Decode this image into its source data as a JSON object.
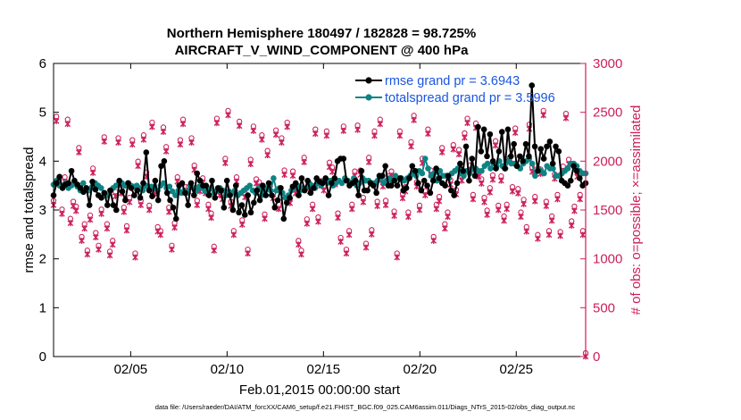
{
  "chart_data": {
    "type": "line",
    "title": "Northern Hemisphere 180497 / 182828 = 98.725%",
    "subtitle": "AIRCRAFT_V_WIND_COMPONENT @ 400 hPa",
    "xlabel": "Feb.01,2015 00:00:00 start",
    "ylabel_left": "rmse and totalspread",
    "ylabel_right": "# of obs: o=possible; ×=assimilated",
    "footnote": "data file: /Users/raeder/DAI/ATM_forcXX/CAM6_setup/f.e21.FHIST_BGC.f09_025.CAM6assim.011/Diags_NTrS_2015-02/obs_diag_output.nc",
    "xlim": [
      1,
      28.6
    ],
    "ylim_left": [
      0,
      6
    ],
    "ylim_right": [
      0,
      3000
    ],
    "x_ticks": [
      5,
      10,
      15,
      20,
      25
    ],
    "x_tick_labels": [
      "02/05",
      "02/10",
      "02/15",
      "02/20",
      "02/25"
    ],
    "y_left_ticks": [
      "0",
      "1",
      "2",
      "3",
      "4",
      "5",
      "6"
    ],
    "y_right_ticks": [
      "0",
      "500",
      "1000",
      "1500",
      "2000",
      "2500",
      "3000"
    ],
    "colors": {
      "rmse": "#000000",
      "spread": "#0f8383",
      "obs": "#cc1f5b",
      "legend_text": "#1a55e0",
      "axis": "#000000"
    },
    "legend": [
      {
        "name": "rmse grand pr = 3.6943",
        "color": "#000000"
      },
      {
        "name": "totalspread grand pr = 3.5996",
        "color": "#0f8383"
      }
    ],
    "series": [
      {
        "name": "rmse",
        "axis": "left",
        "values": [
          3.3,
          3.55,
          3.68,
          3.45,
          3.52,
          3.55,
          3.8,
          3.6,
          3.52,
          3.45,
          3.37,
          3.45,
          3.1,
          3.58,
          3.42,
          3.3,
          3.25,
          3.35,
          3.1,
          3.4,
          3.1,
          3.0,
          3.6,
          3.38,
          3.2,
          3.55,
          3.45,
          3.3,
          3.4,
          3.25,
          3.55,
          4.18,
          3.4,
          3.28,
          3.6,
          3.2,
          3.9,
          4.0,
          3.35,
          3.2,
          3.05,
          2.82,
          3.5,
          3.55,
          3.35,
          3.1,
          3.55,
          3.3,
          3.75,
          3.6,
          3.5,
          3.5,
          3.3,
          3.6,
          3.25,
          3.45,
          3.4,
          3.05,
          3.6,
          3.3,
          3.0,
          3.5,
          2.95,
          3.1,
          2.9,
          3.3,
          2.95,
          3.15,
          3.4,
          3.2,
          3.5,
          3.3,
          3.55,
          3.3,
          3.05,
          3.2,
          3.45,
          2.82,
          3.15,
          3.25,
          3.48,
          3.55,
          3.3,
          3.65,
          3.4,
          3.6,
          3.35,
          3.45,
          3.65,
          3.58,
          3.55,
          3.65,
          3.3,
          3.55,
          3.65,
          4.0,
          4.05,
          4.05,
          3.6,
          3.5,
          3.55,
          3.6,
          3.3,
          3.8,
          3.4,
          3.4,
          3.55,
          3.5,
          3.35,
          3.7,
          3.7,
          3.9,
          3.5,
          3.5,
          3.6,
          3.5,
          3.65,
          3.4,
          3.45,
          3.65,
          3.9,
          3.8,
          3.55,
          3.4,
          3.6,
          3.5,
          3.35,
          3.6,
          3.85,
          3.65,
          3.55,
          3.5,
          3.7,
          3.4,
          3.3,
          3.55,
          3.95,
          3.8,
          4.3,
          3.6,
          4.05,
          3.7,
          4.7,
          4.2,
          4.65,
          4.1,
          4.55,
          4.0,
          3.85,
          4.2,
          4.6,
          3.85,
          4.65,
          4.1,
          4.35,
          3.9,
          4.1,
          4.0,
          4.35,
          4.1,
          5.55,
          4.3,
          3.8,
          4.25,
          4.05,
          4.3,
          4.4,
          3.95,
          4.3,
          4.2,
          3.6,
          3.55,
          3.5,
          3.6,
          3.9,
          3.8,
          3.65,
          3.5,
          3.55
        ]
      },
      {
        "name": "totalspread",
        "axis": "left",
        "values": [
          3.52,
          3.6,
          3.5,
          3.48,
          3.55,
          3.45,
          3.5,
          3.55,
          3.48,
          3.4,
          3.55,
          3.45,
          3.4,
          3.48,
          3.55,
          3.5,
          3.45,
          3.35,
          3.3,
          3.4,
          3.45,
          3.5,
          3.55,
          3.55,
          3.5,
          3.55,
          3.5,
          3.48,
          3.5,
          3.45,
          3.4,
          3.5,
          3.45,
          3.48,
          3.45,
          3.4,
          3.5,
          3.55,
          3.45,
          3.48,
          3.38,
          3.3,
          3.4,
          3.35,
          3.4,
          3.35,
          3.5,
          3.45,
          3.4,
          3.48,
          3.45,
          3.38,
          3.4,
          3.45,
          3.35,
          3.4,
          3.45,
          3.4,
          3.3,
          3.38,
          3.35,
          3.4,
          3.3,
          3.35,
          3.4,
          3.45,
          3.5,
          3.4,
          3.35,
          3.45,
          3.3,
          3.4,
          3.45,
          3.4,
          3.65,
          3.4,
          3.45,
          3.35,
          3.25,
          3.3,
          3.4,
          3.45,
          3.5,
          3.4,
          3.45,
          3.45,
          3.55,
          3.5,
          3.45,
          3.55,
          3.5,
          3.6,
          3.55,
          3.6,
          3.5,
          3.55,
          3.6,
          3.55,
          3.65,
          3.6,
          3.55,
          3.65,
          3.5,
          3.55,
          3.65,
          3.6,
          3.6,
          3.55,
          3.55,
          3.6,
          3.65,
          3.55,
          3.6,
          3.65,
          3.6,
          3.7,
          3.65,
          3.65,
          3.6,
          3.65,
          3.7,
          3.75,
          3.7,
          3.8,
          3.75,
          4.05,
          3.85,
          3.7,
          3.75,
          3.6,
          3.8,
          3.7,
          3.7,
          3.65,
          3.75,
          3.8,
          3.85,
          3.75,
          3.7,
          3.8,
          3.75,
          3.85,
          3.85,
          3.8,
          3.8,
          3.9,
          3.95,
          3.85,
          3.95,
          3.9,
          4.0,
          3.9,
          3.85,
          4.0,
          3.95,
          3.95,
          3.9,
          3.85,
          3.95,
          4.0,
          4.05,
          3.95,
          3.7,
          3.85,
          3.8,
          3.75,
          3.9,
          3.85,
          3.85,
          3.7,
          3.7,
          3.75,
          3.8,
          3.85,
          3.95,
          3.95,
          3.9,
          3.8,
          3.75,
          3.75
        ]
      }
    ],
    "obs_possible": {
      "axis": "right",
      "values": [
        1560,
        2420,
        1800,
        1470,
        1800,
        2390,
        1375,
        1550,
        1500,
        2100,
        1190,
        1320,
        1050,
        1410,
        1890,
        1230,
        1100,
        1470,
        2210,
        1320,
        1040,
        1150,
        1650,
        2200,
        1680,
        1490,
        1300,
        1590,
        2180,
        1020,
        1960,
        1560,
        2230,
        1850,
        1510,
        2360,
        1670,
        1290,
        1250,
        2310,
        2110,
        1490,
        1100,
        1330,
        1800,
        2180,
        2390,
        1700,
        1700,
        2200,
        1920,
        1560,
        1700,
        1790,
        1680,
        1520,
        1430,
        1090,
        2400,
        1660,
        1620,
        1990,
        2480,
        1550,
        1250,
        1800,
        2370,
        1360,
        1640,
        1060,
        1980,
        2320,
        1780,
        1750,
        2230,
        1420,
        2070,
        1730,
        1630,
        2280,
        1520,
        2200,
        1870,
        2360,
        1580,
        1860,
        1680,
        1150,
        1050,
        2000,
        1370,
        1700,
        1520,
        2290,
        1390,
        1760,
        1710,
        2270,
        1950,
        1900,
        1770,
        1430,
        1180,
        2320,
        1060,
        1250,
        1520,
        1860,
        2330,
        1870,
        1590,
        1120,
        2000,
        1260,
        2270,
        1550,
        2390,
        1750,
        1560,
        1810,
        1860,
        1450,
        1020,
        2270,
        1630,
        1700,
        1440,
        2160,
        2430,
        1750,
        1510,
        1990,
        1660,
        2290,
        1870,
        1190,
        1520,
        1600,
        2100,
        1320,
        1440,
        1770,
        2130,
        1670,
        2080,
        1810,
        2250,
        2400,
        1920,
        1620,
        2350,
        1850,
        1780,
        1590,
        1460,
        1690,
        1820,
        2170,
        1510,
        1810,
        1400,
        1520,
        2000,
        1700,
        2300,
        1680,
        1440,
        1570,
        1290,
        2340,
        1900,
        1600,
        1210,
        1880,
        2480,
        1550,
        1250,
        1400,
        1830,
        1620,
        1240,
        1910,
        2450,
        1980,
        1350,
        1500,
        1850,
        1620,
        1250,
        0
      ]
    },
    "obs_assimilated": {
      "axis": "right",
      "values": [
        1550,
        2410,
        1790,
        1460,
        1790,
        2380,
        1365,
        1540,
        1490,
        2090,
        1185,
        1310,
        1045,
        1400,
        1880,
        1220,
        1095,
        1460,
        2200,
        1310,
        1035,
        1145,
        1640,
        2190,
        1670,
        1480,
        1290,
        1580,
        2170,
        1015,
        1950,
        1550,
        2220,
        1840,
        1500,
        2350,
        1660,
        1280,
        1245,
        2300,
        2100,
        1480,
        1095,
        1320,
        1790,
        2170,
        2380,
        1690,
        1690,
        2190,
        1910,
        1550,
        1690,
        1780,
        1670,
        1510,
        1420,
        1085,
        2390,
        1650,
        1610,
        1980,
        2470,
        1540,
        1245,
        1790,
        2360,
        1350,
        1630,
        1055,
        1970,
        2310,
        1770,
        1740,
        2220,
        1410,
        2060,
        1720,
        1620,
        2270,
        1510,
        2190,
        1860,
        2350,
        1570,
        1850,
        1670,
        1145,
        1045,
        1990,
        1360,
        1690,
        1510,
        2280,
        1380,
        1750,
        1700,
        2260,
        1940,
        1890,
        1760,
        1420,
        1175,
        2310,
        1055,
        1245,
        1510,
        1850,
        2320,
        1860,
        1580,
        1115,
        1990,
        1250,
        2260,
        1540,
        2380,
        1740,
        1550,
        1800,
        1850,
        1440,
        1015,
        2260,
        1620,
        1690,
        1430,
        2150,
        2420,
        1740,
        1500,
        1980,
        1650,
        2280,
        1860,
        1185,
        1510,
        1590,
        2090,
        1310,
        1430,
        1760,
        2120,
        1660,
        2070,
        1800,
        2240,
        2390,
        1910,
        1610,
        2340,
        1840,
        1770,
        1580,
        1450,
        1680,
        1810,
        2160,
        1500,
        1800,
        1390,
        1510,
        1990,
        1690,
        2290,
        1670,
        1430,
        1560,
        1280,
        2330,
        1890,
        1590,
        1205,
        1870,
        2470,
        1540,
        1245,
        1390,
        1820,
        1610,
        1235,
        1900,
        2440,
        1970,
        1340,
        1490,
        1840,
        1610,
        1245,
        0
      ]
    }
  }
}
